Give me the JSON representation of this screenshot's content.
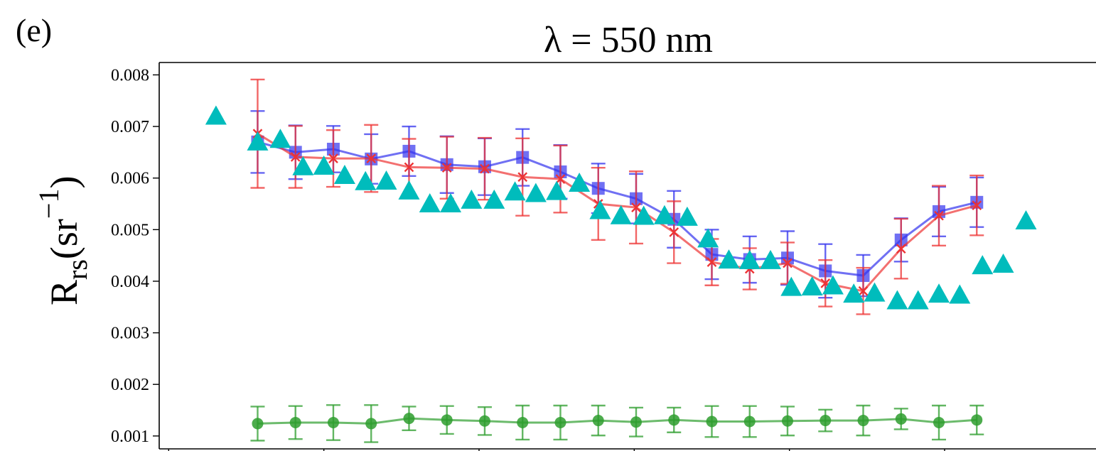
{
  "panel_label": "(e)",
  "chart_data": {
    "type": "line",
    "title": "λ = 550 nm",
    "xlabel": "",
    "ylabel_main": "R",
    "ylabel_sub": "rs",
    "ylabel_unit": "(sr",
    "ylabel_exp": "−1",
    "ylabel_close": ")",
    "x": [
      1,
      2,
      3,
      4,
      5,
      6,
      7,
      8,
      9,
      10,
      11,
      12,
      13,
      14,
      15,
      16,
      17,
      18,
      19,
      20,
      21,
      22
    ],
    "xlim": [
      -1.6,
      23.15
    ],
    "ylim": [
      0.00075,
      0.00824
    ],
    "yticks": [
      0.001,
      0.002,
      0.003,
      0.004,
      0.005,
      0.006,
      0.007,
      0.008
    ],
    "ytick_labels": [
      "0.001",
      "0.002",
      "0.003",
      "0.004",
      "0.005",
      "0.006",
      "0.007",
      "0.008"
    ],
    "xticks": [
      -1.35,
      2.75,
      6.85,
      10.95,
      15.05,
      19.15
    ],
    "grid": false,
    "series": [
      {
        "marker": "square",
        "color": "#3333ee",
        "values": [
          0.0067,
          0.0065,
          0.00656,
          0.00637,
          0.00652,
          0.00626,
          0.00622,
          0.0064,
          0.00612,
          0.0058,
          0.0056,
          0.0052,
          0.00452,
          0.00442,
          0.00445,
          0.0042,
          0.00411,
          0.0048,
          0.00535,
          0.00553
        ],
        "err": [
          0.0006,
          0.00052,
          0.00045,
          0.00048,
          0.00048,
          0.00055,
          0.00055,
          0.00055,
          0.00052,
          0.00048,
          0.00048,
          0.00055,
          0.00048,
          0.00045,
          0.00052,
          0.00052,
          0.0004,
          0.00042,
          0.00048,
          0.00048
        ],
        "x": [
          1,
          2,
          3,
          4,
          5,
          6,
          7,
          8,
          9,
          10,
          11,
          12,
          13,
          14,
          15,
          16,
          17,
          18,
          19,
          20
        ]
      },
      {
        "marker": "x",
        "color": "#ee3333",
        "values": [
          0.00686,
          0.00641,
          0.00638,
          0.00638,
          0.00621,
          0.0062,
          0.00618,
          0.00602,
          0.00598,
          0.0055,
          0.00543,
          0.00495,
          0.00437,
          0.00424,
          0.00435,
          0.00396,
          0.00381,
          0.00463,
          0.00527,
          0.00547
        ],
        "err": [
          0.00105,
          0.0006,
          0.00055,
          0.00065,
          0.00055,
          0.0006,
          0.0006,
          0.00075,
          0.00065,
          0.0007,
          0.0007,
          0.0006,
          0.00045,
          0.0004,
          0.0004,
          0.00045,
          0.00045,
          0.00058,
          0.00058,
          0.00058
        ],
        "x": [
          1,
          2,
          3,
          4,
          5,
          6,
          7,
          8,
          9,
          10,
          11,
          12,
          13,
          14,
          15,
          16,
          17,
          18,
          19,
          20
        ]
      },
      {
        "marker": "circle",
        "color": "#2e9e2e",
        "values": [
          0.00124,
          0.00126,
          0.00126,
          0.00124,
          0.00134,
          0.00131,
          0.00129,
          0.00126,
          0.00126,
          0.0013,
          0.00127,
          0.00131,
          0.00128,
          0.00128,
          0.00129,
          0.0013,
          0.0013,
          0.00133,
          0.00126,
          0.00131
        ],
        "err": [
          0.00033,
          0.00032,
          0.00034,
          0.00036,
          0.00023,
          0.00027,
          0.00027,
          0.00033,
          0.00033,
          0.00029,
          0.00028,
          0.00024,
          0.0003,
          0.0003,
          0.00028,
          0.00021,
          0.00029,
          0.0002,
          0.00033,
          0.00028
        ],
        "x": [
          1,
          2,
          3,
          4,
          5,
          6,
          7,
          8,
          9,
          10,
          11,
          12,
          13,
          14,
          15,
          16,
          17,
          18,
          19,
          20
        ]
      },
      {
        "marker": "triangle",
        "color": "#00bcbc",
        "x": [
          -0.1,
          1.0,
          1.6,
          2.2,
          2.75,
          3.3,
          3.85,
          4.4,
          5.0,
          5.55,
          6.1,
          6.65,
          7.25,
          7.8,
          8.35,
          8.9,
          9.5,
          10.05,
          10.6,
          11.2,
          11.75,
          12.35,
          12.9,
          13.45,
          14.0,
          14.55,
          15.1,
          15.65,
          16.2,
          16.75,
          17.3,
          17.9,
          18.45,
          19.0,
          19.55,
          20.15,
          20.7,
          21.3
        ],
        "values": [
          0.0072,
          0.0067,
          0.00675,
          0.00622,
          0.00623,
          0.00605,
          0.00593,
          0.00594,
          0.00575,
          0.0055,
          0.0055,
          0.00557,
          0.00557,
          0.00573,
          0.0057,
          0.00574,
          0.0059,
          0.00537,
          0.00527,
          0.00526,
          0.00527,
          0.00524,
          0.00482,
          0.00441,
          0.0044,
          0.0044,
          0.00388,
          0.00389,
          0.00391,
          0.00375,
          0.00377,
          0.00362,
          0.00362,
          0.00375,
          0.00373,
          0.0043,
          0.00433,
          0.00517
        ]
      }
    ]
  }
}
